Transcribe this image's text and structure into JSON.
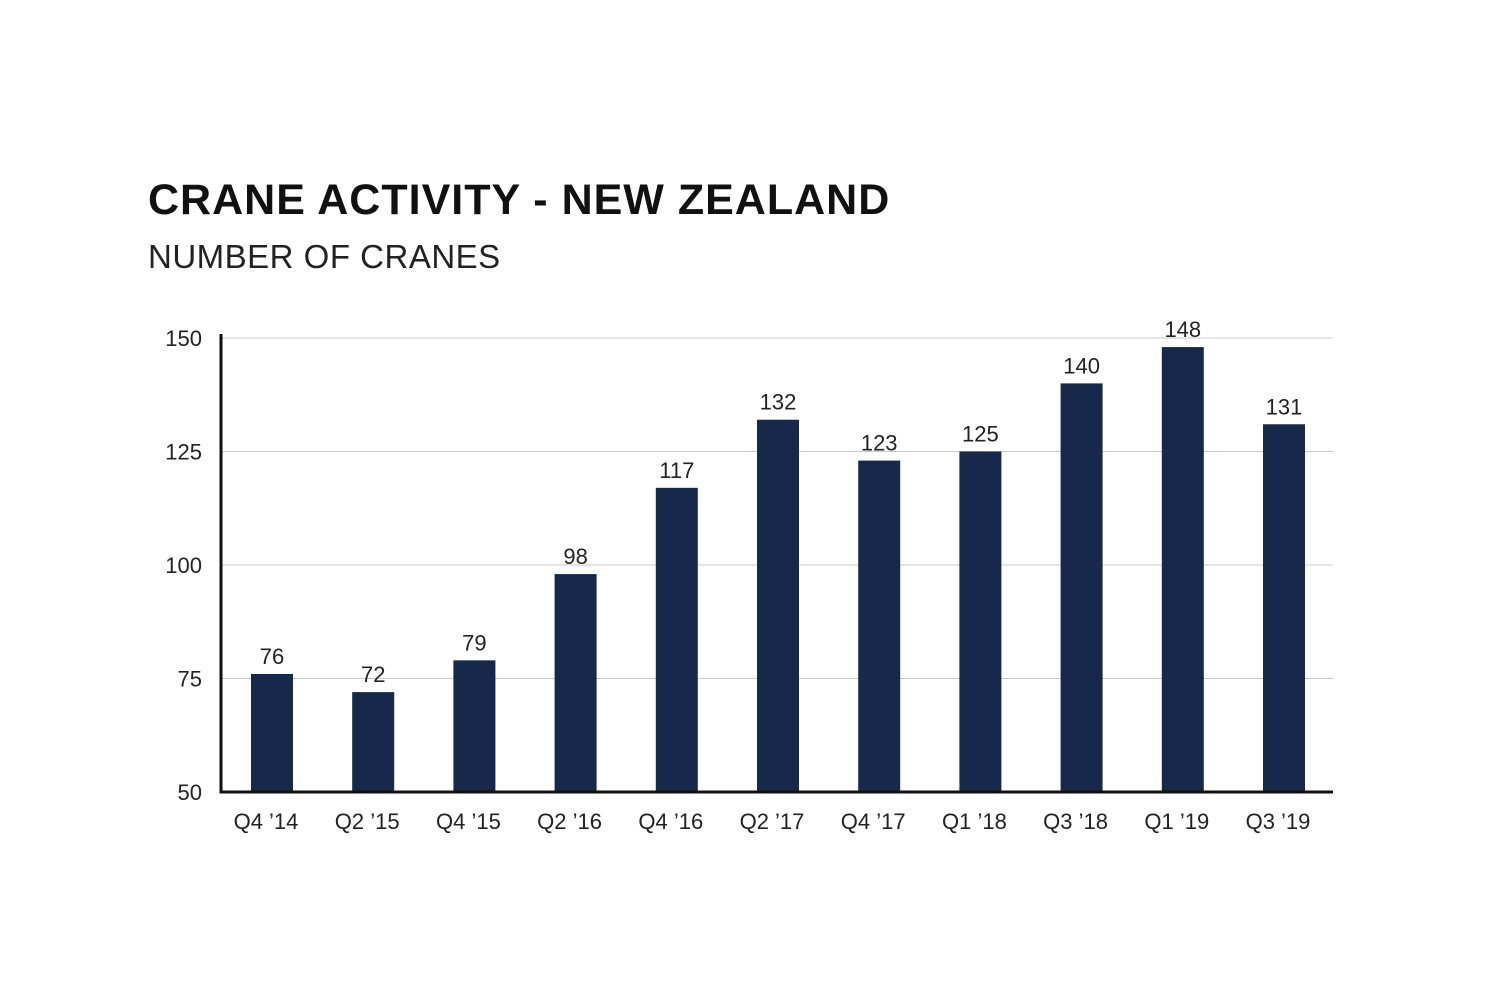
{
  "chart_data": {
    "type": "bar",
    "title": "CRANE ACTIVITY - NEW ZEALAND",
    "subtitle": "NUMBER OF CRANES",
    "xlabel": "",
    "ylabel": "",
    "categories": [
      "Q4 ’14",
      "Q2 ’15",
      "Q4 ’15",
      "Q2 ’16",
      "Q4 ’16",
      "Q2 ’17",
      "Q4 ’17",
      "Q1 ’18",
      "Q3 ’18",
      "Q1 ’19",
      "Q3 ’19"
    ],
    "values": [
      76,
      72,
      79,
      98,
      117,
      132,
      123,
      125,
      140,
      148,
      131
    ],
    "ylim": [
      50,
      150
    ],
    "yticks": [
      50,
      75,
      100,
      125,
      150
    ],
    "grid": true,
    "legend": "none",
    "colors": {
      "bar": "#17294a",
      "grid": "#c8c8c8",
      "axis": "#111111"
    }
  }
}
